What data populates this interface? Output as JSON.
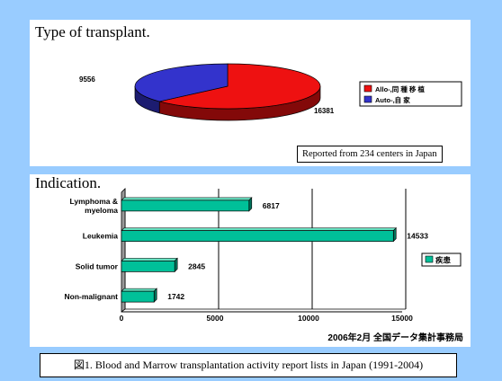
{
  "chart_data": [
    {
      "type": "pie",
      "title": "Type of transplant.",
      "slices": [
        {
          "name": "Allo-,同 種 移 植",
          "value": 16381,
          "color": "#ee1111"
        },
        {
          "name": "Auto-,自 家",
          "value": 9556,
          "color": "#3333cc"
        }
      ],
      "legend": "right",
      "annotation": "Reported from 234 centers in Japan"
    },
    {
      "type": "bar",
      "orientation": "horizontal",
      "title": "Indication.",
      "categories": [
        "Lymphoma &\nmyeloma",
        "Leukemia",
        "Solid tumor",
        "Non-malignant"
      ],
      "series": [
        {
          "name": "疾患",
          "values": [
            6817,
            14533,
            2845,
            1742
          ],
          "color": "#00c099"
        }
      ],
      "xlim": [
        0,
        15000
      ],
      "x_ticks": [
        "0",
        "5000",
        "10000",
        "15000"
      ],
      "data_labels": [
        "6817",
        "14533",
        "2845",
        "1742"
      ],
      "legend": "right",
      "grid": true,
      "annotation": "2006年2月 全国データ集計事務局"
    }
  ],
  "caption": "図1. Blood and Marrow transplantation activity report lists in Japan (1991-2004)"
}
